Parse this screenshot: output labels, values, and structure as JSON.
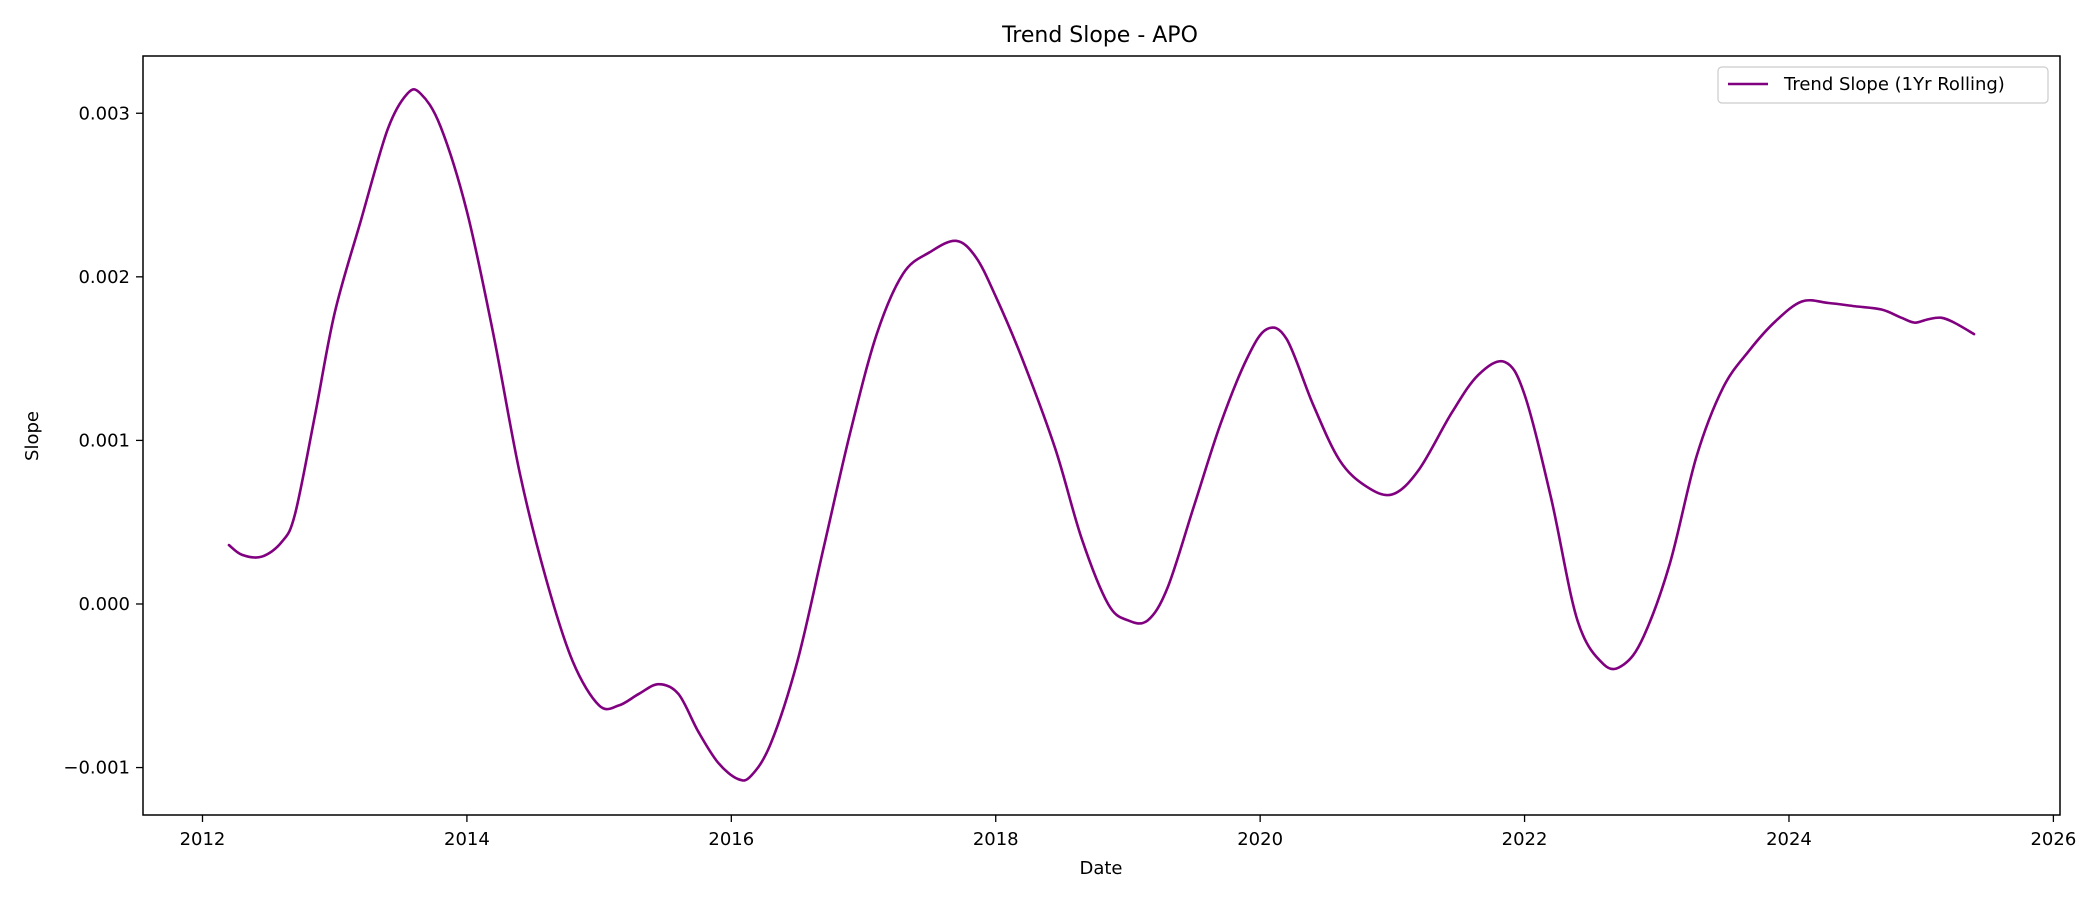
{
  "chart_data": {
    "type": "line",
    "title": "Trend Slope - APO",
    "xlabel": "Date",
    "ylabel": "Slope",
    "xlim": [
      2011.55,
      2026.05
    ],
    "ylim": [
      -0.00129,
      0.00335
    ],
    "x_ticks": [
      2012,
      2014,
      2016,
      2018,
      2020,
      2022,
      2024,
      2026
    ],
    "x_tick_labels": [
      "2012",
      "2014",
      "2016",
      "2018",
      "2020",
      "2022",
      "2024",
      "2026"
    ],
    "y_ticks": [
      -0.001,
      0.0,
      0.001,
      0.002,
      0.003
    ],
    "y_tick_labels": [
      "−0.001",
      "0.000",
      "0.001",
      "0.002",
      "0.003"
    ],
    "grid": false,
    "legend_position": "top-right",
    "series": [
      {
        "name": "Trend Slope (1Yr Rolling)",
        "color": "#800080",
        "x": [
          2012.2,
          2012.3,
          2012.45,
          2012.6,
          2012.7,
          2012.85,
          2013.0,
          2013.2,
          2013.4,
          2013.55,
          2013.65,
          2013.8,
          2014.0,
          2014.2,
          2014.4,
          2014.6,
          2014.8,
          2015.0,
          2015.15,
          2015.3,
          2015.45,
          2015.6,
          2015.75,
          2015.9,
          2016.05,
          2016.15,
          2016.3,
          2016.5,
          2016.7,
          2016.9,
          2017.1,
          2017.3,
          2017.5,
          2017.7,
          2017.85,
          2018.0,
          2018.2,
          2018.45,
          2018.65,
          2018.85,
          2019.0,
          2019.15,
          2019.3,
          2019.5,
          2019.7,
          2019.9,
          2020.05,
          2020.2,
          2020.4,
          2020.6,
          2020.8,
          2021.0,
          2021.2,
          2021.45,
          2021.65,
          2021.85,
          2022.0,
          2022.2,
          2022.4,
          2022.6,
          2022.75,
          2022.9,
          2023.1,
          2023.3,
          2023.5,
          2023.7,
          2023.9,
          2024.1,
          2024.3,
          2024.5,
          2024.7,
          2024.85,
          2024.95,
          2025.05,
          2025.15,
          2025.25,
          2025.4
        ],
        "y": [
          0.00036,
          0.0003,
          0.00029,
          0.00038,
          0.00055,
          0.00115,
          0.00178,
          0.00235,
          0.0029,
          0.00312,
          0.00312,
          0.00292,
          0.0024,
          0.00165,
          0.0008,
          0.00015,
          -0.00035,
          -0.00062,
          -0.00062,
          -0.00055,
          -0.00049,
          -0.00055,
          -0.00078,
          -0.00097,
          -0.00107,
          -0.00105,
          -0.00085,
          -0.00035,
          0.00035,
          0.00105,
          0.00165,
          0.00202,
          0.00215,
          0.00222,
          0.00212,
          0.00188,
          0.0015,
          0.00095,
          0.0004,
          0.0,
          -0.0001,
          -0.0001,
          0.0001,
          0.0006,
          0.0011,
          0.0015,
          0.00168,
          0.00162,
          0.00122,
          0.00088,
          0.00072,
          0.00067,
          0.00082,
          0.00117,
          0.0014,
          0.00148,
          0.00128,
          0.00065,
          -0.0001,
          -0.00037,
          -0.00037,
          -0.0002,
          0.00025,
          0.0009,
          0.00132,
          0.00155,
          0.00173,
          0.00185,
          0.00184,
          0.00182,
          0.0018,
          0.00175,
          0.00172,
          0.00174,
          0.00175,
          0.00172,
          0.00165
        ]
      }
    ]
  }
}
